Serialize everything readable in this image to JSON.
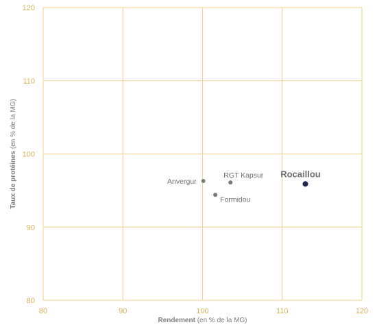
{
  "colors": {
    "grid": "#f0d38a",
    "tick_label": "#d8b25a",
    "axis_title": "#7f7f7f",
    "point": "#7a7a7a",
    "point_label": "#6e6e6e",
    "highlight": "#1f2a52"
  },
  "chart_data": {
    "type": "scatter",
    "xlabel_bold": "Rendement",
    "xlabel_rest": " (en % de la MG)",
    "ylabel_bold": "Taux de protéines",
    "ylabel_rest": " (en % de la MG)",
    "xlim": [
      80,
      120
    ],
    "ylim": [
      80,
      120
    ],
    "x_ticks": [
      80,
      90,
      100,
      110,
      120
    ],
    "y_ticks": [
      80,
      90,
      100,
      110,
      120
    ],
    "grid": true,
    "points": [
      {
        "label": "Anvergur",
        "x": 100.1,
        "y": 96.3,
        "highlight": false,
        "label_side": "left"
      },
      {
        "label": "RGT Kapsur",
        "x": 103.5,
        "y": 96.1,
        "highlight": false,
        "label_side": "above-right"
      },
      {
        "label": "Formidou",
        "x": 101.6,
        "y": 94.4,
        "highlight": false,
        "label_side": "below-right"
      },
      {
        "label": "Rocaillou",
        "x": 112.9,
        "y": 95.9,
        "highlight": true,
        "label_side": "above"
      }
    ]
  }
}
